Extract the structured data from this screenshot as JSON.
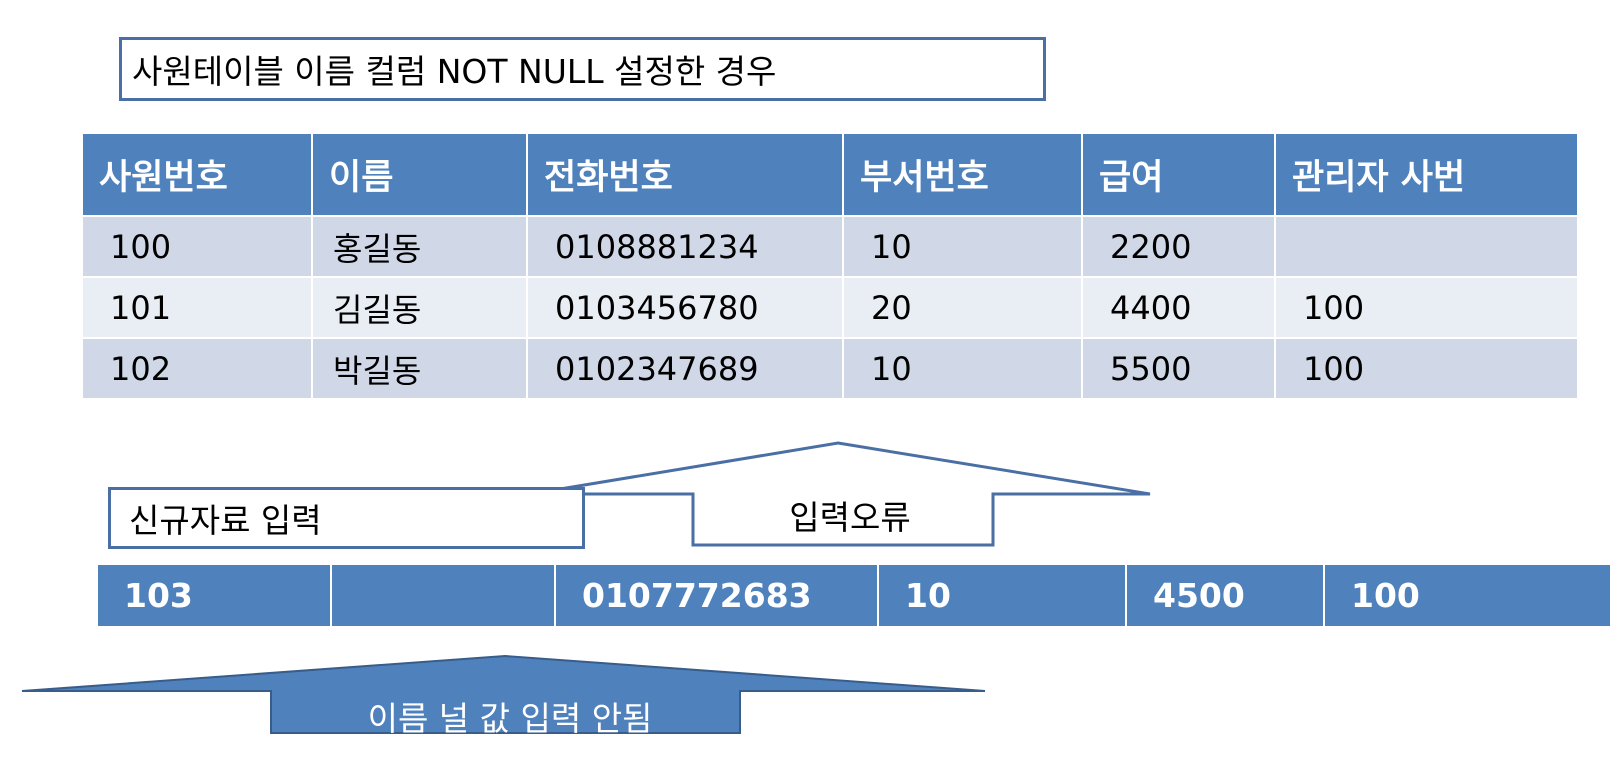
{
  "title": "사원테이블 이름 컬럼 NOT  NULL 설정한 경우",
  "table": {
    "headers": [
      "사원번호",
      "이름",
      "전화번호",
      "부서번호",
      "급여",
      "관리자 사번"
    ],
    "rows": [
      [
        "100",
        "홍길동",
        "0108881234",
        "10",
        "2200",
        ""
      ],
      [
        "101",
        "김길동",
        "0103456780",
        "20",
        "4400",
        "100"
      ],
      [
        "102",
        "박길동",
        "0102347689",
        "10",
        "5500",
        "100"
      ]
    ]
  },
  "new_data_label": "신규자료 입력",
  "error_arrow_label": "입력오류",
  "new_row": [
    "103",
    "",
    "0107772683",
    "10",
    "4500",
    "100"
  ],
  "null_arrow_label": "이름 널 값 입력 안됨",
  "colors": {
    "header_blue": "#4f81bd",
    "row_band_dark": "#d0d8e8",
    "row_band_light": "#e9edf4",
    "outline": "#4a6fa5",
    "arrow_fill": "#4f81bd"
  }
}
